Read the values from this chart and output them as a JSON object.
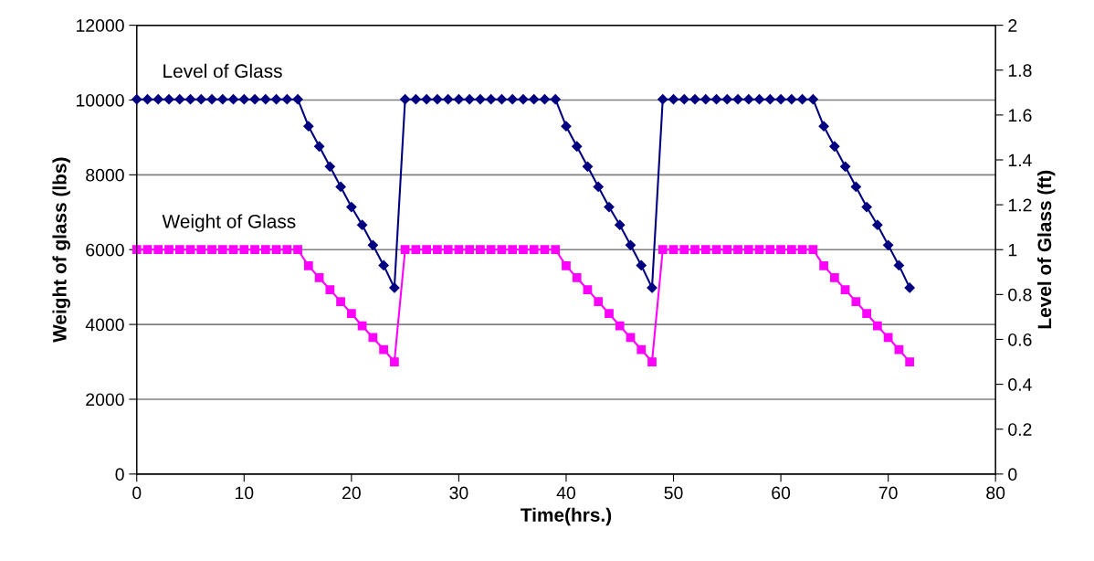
{
  "chart_data": {
    "type": "line",
    "xlabel": "Time(hrs.)",
    "ylabel": "Weight of glass (lbs)",
    "y2label": "Level of Glass (ft)",
    "x": [
      0,
      1,
      2,
      3,
      4,
      5,
      6,
      7,
      8,
      9,
      10,
      11,
      12,
      13,
      14,
      15,
      16,
      17,
      18,
      19,
      20,
      21,
      22,
      23,
      24,
      25,
      26,
      27,
      28,
      29,
      30,
      31,
      32,
      33,
      34,
      35,
      36,
      37,
      38,
      39,
      40,
      41,
      42,
      43,
      44,
      45,
      46,
      47,
      48,
      49,
      50,
      51,
      52,
      53,
      54,
      55,
      56,
      57,
      58,
      59,
      60,
      61,
      62,
      63,
      64,
      65,
      66,
      67,
      68,
      69,
      70,
      71,
      72
    ],
    "series": [
      {
        "name": "Level of Glass",
        "color": "#000080",
        "axis": "y2",
        "marker": "diamond",
        "values": [
          1.67,
          1.67,
          1.67,
          1.67,
          1.67,
          1.67,
          1.67,
          1.67,
          1.67,
          1.67,
          1.67,
          1.67,
          1.67,
          1.67,
          1.67,
          1.67,
          1.55,
          1.46,
          1.37,
          1.28,
          1.19,
          1.11,
          1.02,
          0.93,
          0.83,
          1.67,
          1.67,
          1.67,
          1.67,
          1.67,
          1.67,
          1.67,
          1.67,
          1.67,
          1.67,
          1.67,
          1.67,
          1.67,
          1.67,
          1.67,
          1.55,
          1.46,
          1.37,
          1.28,
          1.19,
          1.11,
          1.02,
          0.93,
          0.83,
          1.67,
          1.67,
          1.67,
          1.67,
          1.67,
          1.67,
          1.67,
          1.67,
          1.67,
          1.67,
          1.67,
          1.67,
          1.67,
          1.67,
          1.67,
          1.55,
          1.46,
          1.37,
          1.28,
          1.19,
          1.11,
          1.02,
          0.93,
          0.83
        ]
      },
      {
        "name": "Weight of Glass",
        "color": "#ff00ff",
        "axis": "y",
        "marker": "square",
        "values": [
          6000,
          6000,
          6000,
          6000,
          6000,
          6000,
          6000,
          6000,
          6000,
          6000,
          6000,
          6000,
          6000,
          6000,
          6000,
          6000,
          5570,
          5250,
          4930,
          4610,
          4290,
          3960,
          3650,
          3330,
          3000,
          6000,
          6000,
          6000,
          6000,
          6000,
          6000,
          6000,
          6000,
          6000,
          6000,
          6000,
          6000,
          6000,
          6000,
          6000,
          5570,
          5250,
          4930,
          4610,
          4290,
          3960,
          3650,
          3330,
          3000,
          6000,
          6000,
          6000,
          6000,
          6000,
          6000,
          6000,
          6000,
          6000,
          6000,
          6000,
          6000,
          6000,
          6000,
          6000,
          5570,
          5250,
          4930,
          4610,
          4290,
          3960,
          3650,
          3330,
          3000
        ]
      }
    ],
    "xlim": [
      0,
      80
    ],
    "xticks": [
      0,
      10,
      20,
      30,
      40,
      50,
      60,
      70,
      80
    ],
    "ylim": [
      0,
      12000
    ],
    "yticks": [
      0,
      2000,
      4000,
      6000,
      8000,
      10000,
      12000
    ],
    "y2lim": [
      0,
      2
    ],
    "y2ticks": [
      0,
      0.2,
      0.4,
      0.6,
      0.8,
      1,
      1.2,
      1.4,
      1.6,
      1.8,
      2
    ],
    "grid": "y",
    "legend": false,
    "line_style": "solid"
  }
}
